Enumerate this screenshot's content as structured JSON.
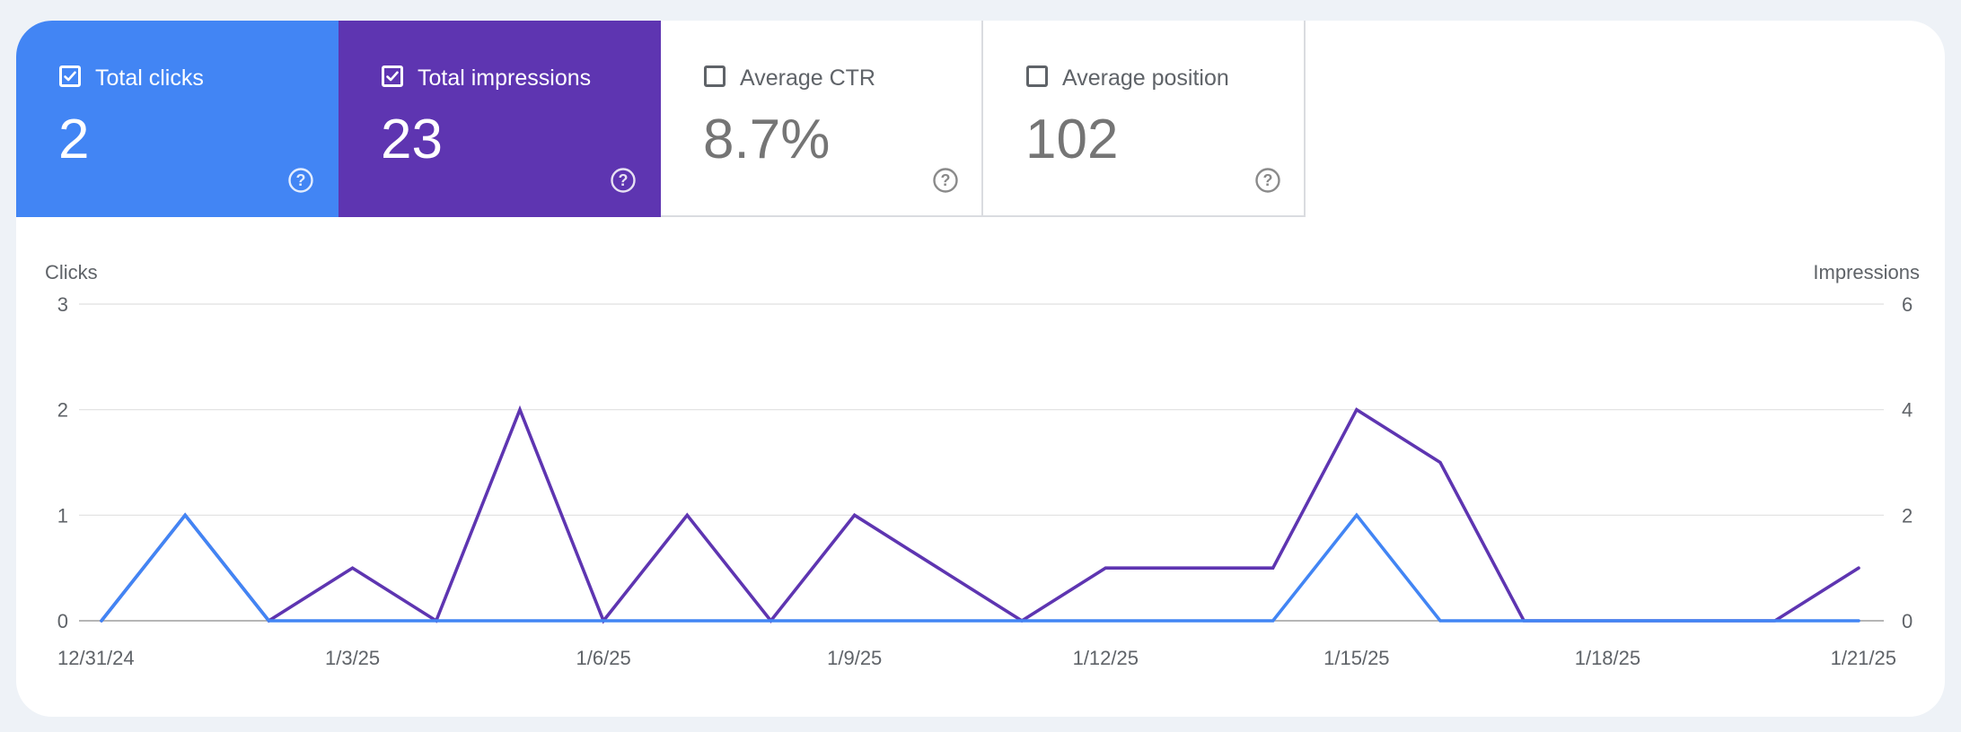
{
  "colors": {
    "clicks": "#4285f4",
    "impressions": "#5e35b1",
    "grid": "#e0e0e0",
    "baseline": "#9e9e9e",
    "tick_text": "#5f6368",
    "checkbox_off": "#5f6368"
  },
  "metrics": [
    {
      "label": "Total clicks",
      "value": "2",
      "checked": true,
      "color": "#4285f4",
      "icon": "question-circle-icon"
    },
    {
      "label": "Total impressions",
      "value": "23",
      "checked": true,
      "color": "#5e35b1",
      "icon": "question-circle-icon"
    },
    {
      "label": "Average CTR",
      "value": "8.7%",
      "checked": false,
      "color": "#ffffff",
      "icon": "question-circle-icon"
    },
    {
      "label": "Average position",
      "value": "102",
      "checked": false,
      "color": "#ffffff",
      "icon": "question-circle-icon"
    }
  ],
  "chart_data": {
    "type": "line",
    "ylabel_left": "Clicks",
    "ylabel_right": "Impressions",
    "ylim_left": [
      0,
      3
    ],
    "ylim_right": [
      0,
      6
    ],
    "yticks_left": [
      "0",
      "1",
      "2",
      "3"
    ],
    "yticks_right": [
      "0",
      "2",
      "4",
      "6"
    ],
    "grid": true,
    "x": [
      "12/31/24",
      "1/1/25",
      "1/2/25",
      "1/3/25",
      "1/4/25",
      "1/5/25",
      "1/6/25",
      "1/7/25",
      "1/8/25",
      "1/9/25",
      "1/10/25",
      "1/11/25",
      "1/12/25",
      "1/13/25",
      "1/14/25",
      "1/15/25",
      "1/16/25",
      "1/17/25",
      "1/18/25",
      "1/19/25",
      "1/20/25",
      "1/21/25"
    ],
    "xticks": [
      "12/31/24",
      "1/3/25",
      "1/6/25",
      "1/9/25",
      "1/12/25",
      "1/15/25",
      "1/18/25",
      "1/21/25"
    ],
    "series": [
      {
        "name": "Clicks",
        "axis": "left",
        "color": "#4285f4",
        "values": [
          0,
          1,
          0,
          0,
          0,
          0,
          0,
          0,
          0,
          0,
          0,
          0,
          0,
          0,
          0,
          1,
          0,
          0,
          0,
          0,
          0,
          0
        ]
      },
      {
        "name": "Impressions",
        "axis": "right",
        "color": "#5e35b1",
        "values": [
          0,
          2,
          0,
          1,
          0,
          4,
          0,
          2,
          0,
          2,
          1,
          0,
          1,
          1,
          1,
          4,
          3,
          0,
          0,
          0,
          0,
          1
        ]
      }
    ]
  }
}
